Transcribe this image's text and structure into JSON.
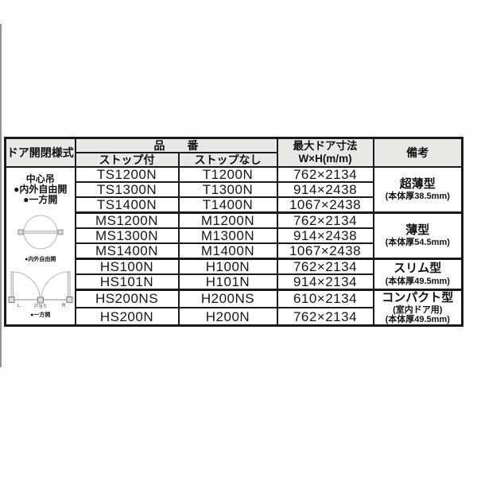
{
  "colors": {
    "border": "#1a1a1a",
    "header_bg": "#e9e8e5",
    "text": "#111111",
    "diagram_stroke": "#b5b5b5"
  },
  "table": {
    "header": {
      "door_style": "ドア開閉様式",
      "part_number": "品　　番",
      "with_stop": "ストップ付",
      "without_stop": "ストップなし",
      "max_door_size_line1": "最大ドア寸法",
      "max_door_size_line2": "W×H(m/m)",
      "remarks": "備考"
    },
    "left_cell": {
      "line1": "中心吊",
      "line2": "●内外自由開",
      "line3": "●一方開",
      "diagram1_caption": "●内外自由開",
      "diagram2_caption": "●一方開",
      "diagram2_label_left": "L",
      "diagram2_label_right": "R",
      "diagram2_label_center": "戸当り"
    },
    "groups": [
      {
        "rows": [
          {
            "with_stop": "TS1200N",
            "without_stop": "T1200N",
            "size": "762×2134"
          },
          {
            "with_stop": "TS1300N",
            "without_stop": "T1300N",
            "size": "914×2438"
          },
          {
            "with_stop": "TS1400N",
            "without_stop": "T1400N",
            "size": "1067×2438"
          }
        ],
        "remark_title": "超薄型",
        "remark_sub": [
          "(本体厚38.5mm)"
        ]
      },
      {
        "rows": [
          {
            "with_stop": "MS1200N",
            "without_stop": "M1200N",
            "size": "762×2134"
          },
          {
            "with_stop": "MS1300N",
            "without_stop": "M1300N",
            "size": "914×2438"
          },
          {
            "with_stop": "MS1400N",
            "without_stop": "M1400N",
            "size": "1067×2438"
          }
        ],
        "remark_title": "薄型",
        "remark_sub": [
          "(本体厚54.5mm)"
        ]
      },
      {
        "rows": [
          {
            "with_stop": "HS100N",
            "without_stop": "H100N",
            "size": "762×2134"
          },
          {
            "with_stop": "HS101N",
            "without_stop": "H101N",
            "size": "914×2134"
          }
        ],
        "remark_title": "スリム型",
        "remark_sub": [
          "(本体厚49.5mm)"
        ]
      },
      {
        "rows": [
          {
            "with_stop": "HS200NS",
            "without_stop": "H200NS",
            "size": "610×2134"
          },
          {
            "with_stop": "HS200N",
            "without_stop": "H200N",
            "size": "762×2134"
          }
        ],
        "remark_title": "コンパクト型",
        "remark_sub": [
          "(室内ドア用)",
          "(本体厚49.5mm)"
        ]
      }
    ]
  }
}
